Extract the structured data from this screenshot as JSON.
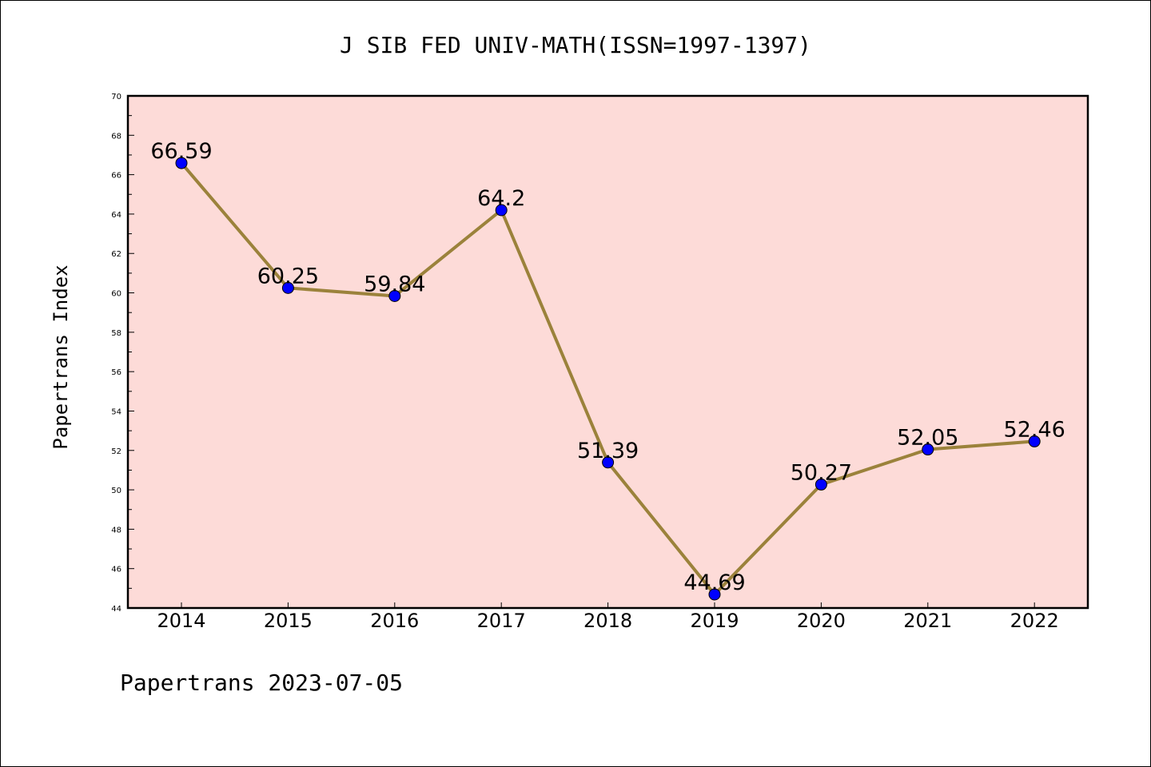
{
  "chart_data": {
    "type": "line",
    "title": "J SIB FED UNIV-MATH(ISSN=1997-1397)",
    "ylabel": "Papertrans Index",
    "xlabel": "",
    "categories": [
      "2014",
      "2015",
      "2016",
      "2017",
      "2018",
      "2019",
      "2020",
      "2021",
      "2022"
    ],
    "series": [
      {
        "values": [
          66.59,
          60.25,
          59.84,
          64.2,
          51.39,
          44.69,
          50.27,
          52.05,
          52.46
        ]
      }
    ],
    "data_labels": [
      "66.59",
      "60.25",
      "59.84",
      "64.2",
      "51.39",
      "44.69",
      "50.27",
      "52.05",
      "52.46"
    ],
    "ylim": [
      44,
      70
    ],
    "yticks": [
      "44",
      "46",
      "48",
      "50",
      "52",
      "54",
      "56",
      "58",
      "60",
      "62",
      "64",
      "66",
      "68",
      "70"
    ],
    "grid": false,
    "plot_background": "#fddbd8",
    "line_color": "#9b823b",
    "marker_color": "#0000ff"
  },
  "footer": "Papertrans 2023-07-05"
}
